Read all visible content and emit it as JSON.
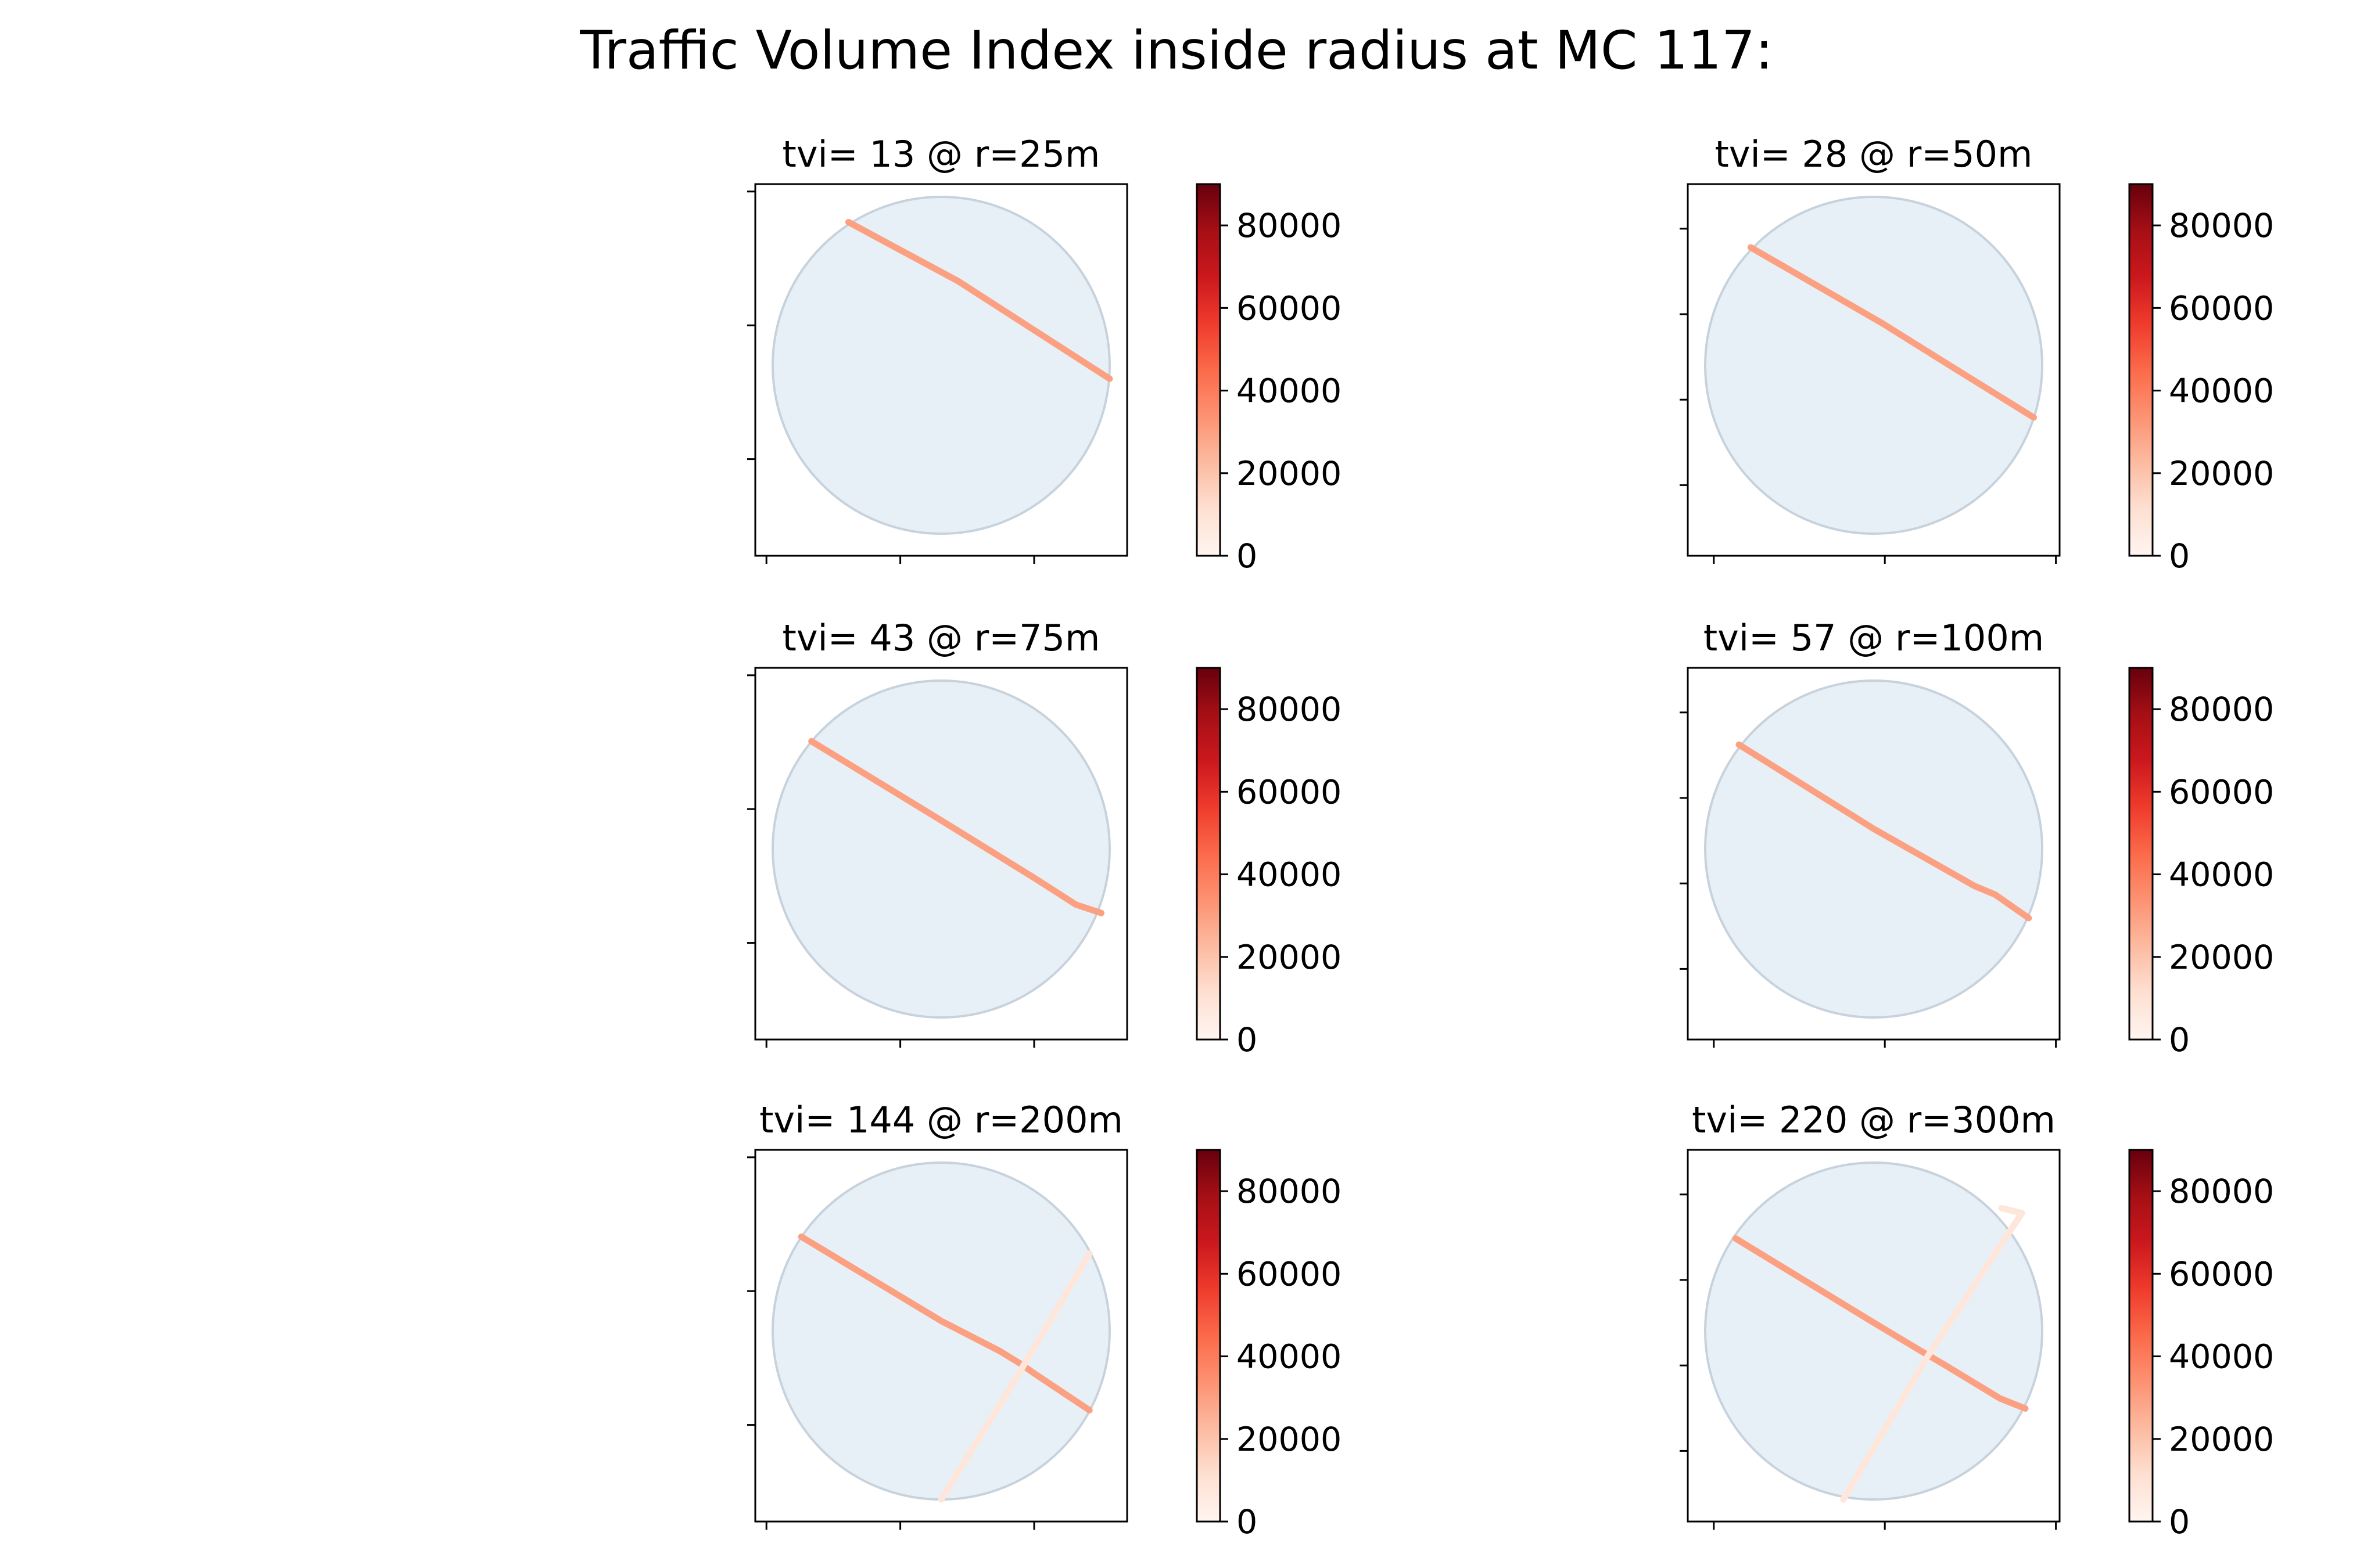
{
  "chart_data": {
    "type": "map-panels",
    "suptitle": "Traffic Volume Index inside radius at MC 117:",
    "colormap": "Reds",
    "colorbar": {
      "min": 0,
      "max": 90000,
      "ticks": [
        0,
        20000,
        40000,
        60000,
        80000
      ],
      "tick_labels": [
        "0",
        "20000",
        "40000",
        "60000",
        "80000"
      ]
    },
    "colors": {
      "buffer_fill": "#e8f0f7",
      "buffer_edge": "#c7d2dc",
      "road_main": "#f6a385",
      "road_minor": "#fde0d3"
    },
    "panels": [
      {
        "title": "tvi= 13 @ r=25m",
        "tvi": 13,
        "radius_m": 25,
        "roads": [
          {
            "volume": 30000,
            "points": [
              [
                -0.55,
                0.85
              ],
              [
                0.1,
                0.5
              ],
              [
                1.0,
                -0.08
              ]
            ]
          }
        ]
      },
      {
        "title": "tvi= 28 @ r=50m",
        "tvi": 28,
        "radius_m": 50,
        "roads": [
          {
            "volume": 30000,
            "points": [
              [
                -0.73,
                0.7
              ],
              [
                0.05,
                0.25
              ],
              [
                0.45,
                0.0
              ],
              [
                0.95,
                -0.31
              ]
            ]
          }
        ]
      },
      {
        "title": "tvi= 43 @ r=75m",
        "tvi": 43,
        "radius_m": 75,
        "roads": [
          {
            "volume": 30000,
            "points": [
              [
                -0.77,
                0.64
              ],
              [
                0.0,
                0.17
              ],
              [
                0.55,
                -0.17
              ],
              [
                0.8,
                -0.33
              ],
              [
                0.95,
                -0.38
              ]
            ]
          }
        ]
      },
      {
        "title": "tvi= 57 @ r=100m",
        "tvi": 57,
        "radius_m": 100,
        "roads": [
          {
            "volume": 30000,
            "points": [
              [
                -0.8,
                0.62
              ],
              [
                0.0,
                0.12
              ],
              [
                0.6,
                -0.22
              ],
              [
                0.72,
                -0.27
              ],
              [
                0.92,
                -0.41
              ]
            ]
          }
        ]
      },
      {
        "title": "tvi= 144 @ r=200m",
        "tvi": 144,
        "radius_m": 200,
        "roads": [
          {
            "volume": 30000,
            "points": [
              [
                -0.83,
                0.56
              ],
              [
                0.0,
                0.06
              ],
              [
                0.35,
                -0.12
              ],
              [
                0.48,
                -0.2
              ],
              [
                0.55,
                -0.25
              ],
              [
                0.88,
                -0.47
              ]
            ]
          },
          {
            "volume": 8000,
            "points": [
              [
                0.0,
                -1.0
              ],
              [
                0.45,
                -0.27
              ],
              [
                0.88,
                0.46
              ]
            ]
          }
        ]
      },
      {
        "title": "tvi= 220 @ r=300m",
        "tvi": 220,
        "radius_m": 300,
        "roads": [
          {
            "volume": 30000,
            "points": [
              [
                -0.82,
                0.55
              ],
              [
                0.0,
                0.05
              ],
              [
                0.3,
                -0.13
              ],
              [
                0.42,
                -0.2
              ],
              [
                0.75,
                -0.4
              ],
              [
                0.9,
                -0.46
              ]
            ]
          },
          {
            "volume": 8000,
            "points": [
              [
                -0.18,
                -1.0
              ],
              [
                0.32,
                -0.15
              ],
              [
                0.78,
                0.55
              ],
              [
                0.88,
                0.7
              ],
              [
                0.76,
                0.73
              ]
            ]
          }
        ]
      }
    ]
  }
}
